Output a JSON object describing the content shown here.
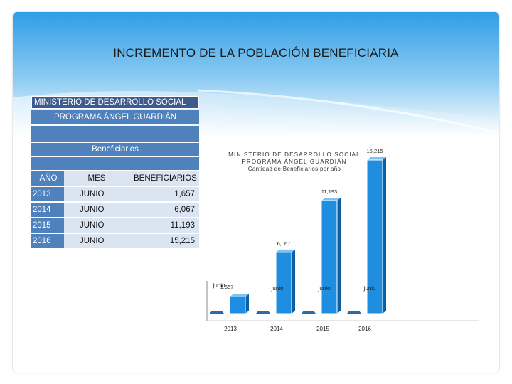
{
  "slide": {
    "title": "INCREMENTO DE LA POBLACIÓN BENEFICIARIA"
  },
  "table": {
    "header_line1": "MINISTERIO DE DESARROLLO SOCIAL",
    "header_line2": "PROGRAMA ÁNGEL GUARDIÁN",
    "header_line3": "Beneficiarios",
    "columns": [
      "AÑO",
      "MES",
      "BENEFICIARIOS"
    ],
    "rows": [
      [
        "2013",
        "JUNIO",
        "1,657"
      ],
      [
        "2014",
        "JUNIO",
        "6,067"
      ],
      [
        "2015",
        "JUNIO",
        "11,193"
      ],
      [
        "2016",
        "JUNIO",
        "15,215"
      ]
    ]
  },
  "chart_title": {
    "line1": "MINISTERIO DE DESARROLLO SOCIAL",
    "line2": "PROGRAMA ÁNGEL GUARDIÁN",
    "line3": "Cantidad de Beneficiarios por año"
  },
  "chart_data": {
    "type": "bar",
    "title": "MINISTERIO DE DESARROLLO SOCIAL / PROGRAMA ÁNGEL GUARDIÁN / Cantidad de Beneficiarios por año",
    "categories": [
      "2013",
      "2014",
      "2015",
      "2016"
    ],
    "sub_labels": [
      "junio",
      "junio",
      "junio",
      "junio"
    ],
    "values": [
      1657,
      6067,
      11193,
      15215
    ],
    "value_labels": [
      "1,657",
      "6,067",
      "11,193",
      "15,215"
    ],
    "ylim": [
      0,
      15215
    ],
    "grid": false,
    "legend": "none",
    "colors": {
      "bar": "#1f8ee0",
      "bar_dark": "#0d5ea3",
      "base": "#2d6aa6"
    }
  },
  "colors": {
    "header_dark": "#3d5b8f",
    "header": "#4f81bd",
    "cell_light": "#dbe5f1",
    "sky_top": "#2f9de6",
    "sky_bottom": "#ffffff"
  }
}
